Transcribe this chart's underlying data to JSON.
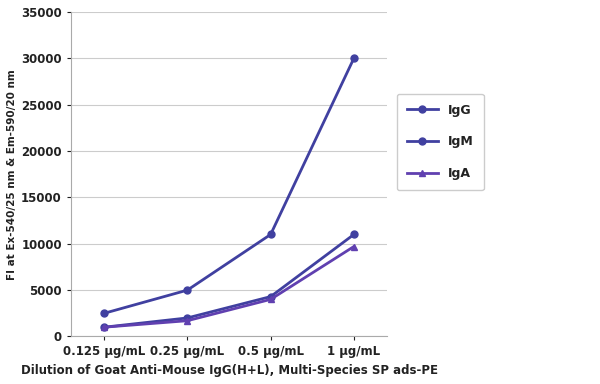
{
  "x_labels": [
    "0.125 μg/mL",
    "0.25 μg/mL",
    "0.5 μg/mL",
    "1 μg/mL"
  ],
  "x_values": [
    0,
    1,
    2,
    3
  ],
  "IgG": [
    2500,
    5000,
    11000,
    30000
  ],
  "IgM": [
    1000,
    2000,
    4300,
    11000
  ],
  "IgA": [
    1000,
    1700,
    4000,
    9700
  ],
  "color_IgG": "#4040a0",
  "color_IgM": "#4040a0",
  "color_IgA": "#6040b0",
  "ylabel": "FI at Ex-540/25 nm & Em-590/20 nm",
  "xlabel": "Dilution of Goat Anti-Mouse IgG(H+L), Multi-Species SP ads-PE",
  "ylim": [
    0,
    35000
  ],
  "yticks": [
    0,
    5000,
    10000,
    15000,
    20000,
    25000,
    30000,
    35000
  ],
  "legend_labels": [
    "IgG",
    "IgM",
    "IgA"
  ],
  "bg_color": "#ffffff",
  "plot_bg_color": "#ffffff",
  "grid_color": "#cccccc",
  "spine_color": "#aaaaaa"
}
